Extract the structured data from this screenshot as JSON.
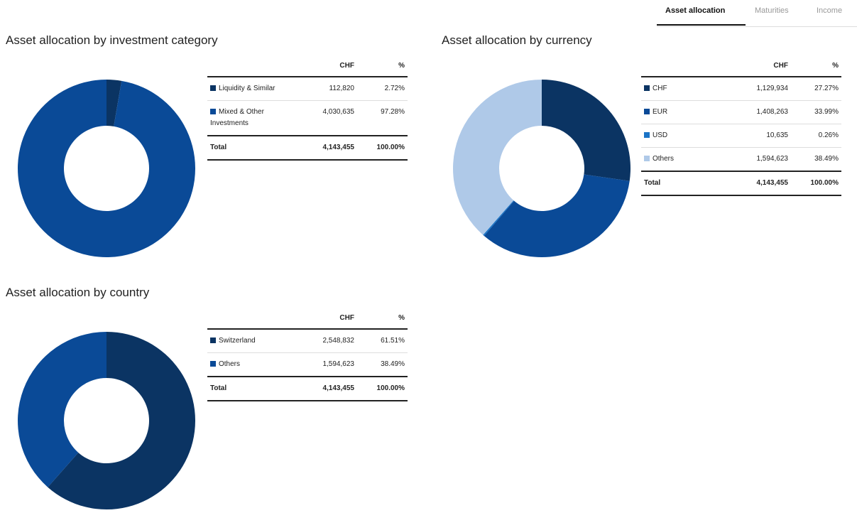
{
  "tabs": [
    "Asset allocation",
    "Maturities",
    "Income"
  ],
  "chart_data": [
    {
      "type": "pie",
      "title": "Asset allocation by investment category",
      "columns": [
        "CHF",
        "%"
      ],
      "categories": [
        "Liquidity & Similar",
        "Mixed & Other Investments"
      ],
      "colors": [
        "#0b3463",
        "#0a4a97"
      ],
      "amounts": [
        "112,820",
        "4,030,635"
      ],
      "values": [
        2.72,
        97.28
      ],
      "value_labels": [
        "2.72%",
        "97.28%"
      ],
      "total": {
        "label": "Total",
        "amount": "4,143,455",
        "percent": "100.00%"
      }
    },
    {
      "type": "pie",
      "title": "Asset allocation by currency",
      "columns": [
        "CHF",
        "%"
      ],
      "categories": [
        "CHF",
        "EUR",
        "USD",
        "Others"
      ],
      "colors": [
        "#0b3463",
        "#0a4a97",
        "#1b74c6",
        "#afc9e8"
      ],
      "amounts": [
        "1,129,934",
        "1,408,263",
        "10,635",
        "1,594,623"
      ],
      "values": [
        27.27,
        33.99,
        0.26,
        38.49
      ],
      "value_labels": [
        "27.27%",
        "33.99%",
        "0.26%",
        "38.49%"
      ],
      "total": {
        "label": "Total",
        "amount": "4,143,455",
        "percent": "100.00%"
      }
    },
    {
      "type": "pie",
      "title": "Asset allocation by country",
      "columns": [
        "CHF",
        "%"
      ],
      "categories": [
        "Switzerland",
        "Others"
      ],
      "colors": [
        "#0b3463",
        "#0a4a97"
      ],
      "amounts": [
        "2,548,832",
        "1,594,623"
      ],
      "values": [
        61.51,
        38.49
      ],
      "value_labels": [
        "61.51%",
        "38.49%"
      ],
      "total": {
        "label": "Total",
        "amount": "4,143,455",
        "percent": "100.00%"
      }
    }
  ]
}
